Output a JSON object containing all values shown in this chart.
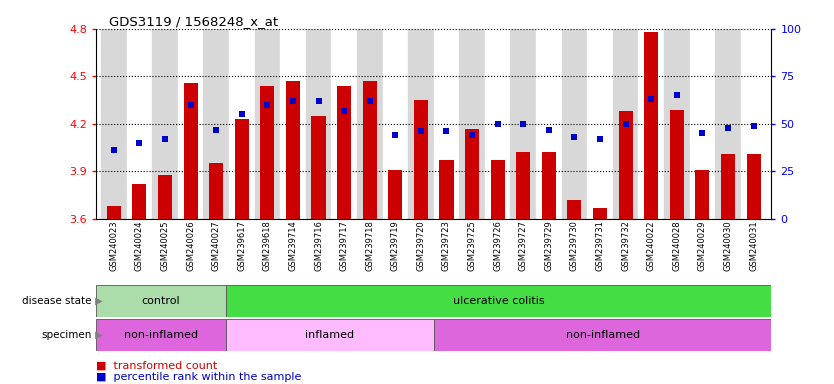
{
  "title": "GDS3119 / 1568248_x_at",
  "samples": [
    "GSM240023",
    "GSM240024",
    "GSM240025",
    "GSM240026",
    "GSM240027",
    "GSM239617",
    "GSM239618",
    "GSM239714",
    "GSM239716",
    "GSM239717",
    "GSM239718",
    "GSM239719",
    "GSM239720",
    "GSM239723",
    "GSM239725",
    "GSM239726",
    "GSM239727",
    "GSM239729",
    "GSM239730",
    "GSM239731",
    "GSM239732",
    "GSM240022",
    "GSM240028",
    "GSM240029",
    "GSM240030",
    "GSM240031"
  ],
  "bar_values": [
    3.68,
    3.82,
    3.88,
    4.46,
    3.95,
    4.23,
    4.44,
    4.47,
    4.25,
    4.44,
    4.47,
    3.91,
    4.35,
    3.97,
    4.17,
    3.97,
    4.02,
    4.02,
    3.72,
    3.67,
    4.28,
    4.78,
    4.29,
    3.91,
    4.01,
    4.01
  ],
  "dot_values": [
    36,
    40,
    42,
    60,
    47,
    55,
    60,
    62,
    62,
    57,
    62,
    44,
    46,
    46,
    44,
    50,
    50,
    47,
    43,
    42,
    50,
    63,
    65,
    45,
    48,
    49
  ],
  "ylim_left": [
    3.6,
    4.8
  ],
  "ylim_right": [
    0,
    100
  ],
  "yticks_left": [
    3.6,
    3.9,
    4.2,
    4.5,
    4.8
  ],
  "yticks_right": [
    0,
    25,
    50,
    75,
    100
  ],
  "bar_color": "#cc0000",
  "dot_color": "#0000cc",
  "plot_bg": "#ffffff",
  "column_bg_even": "#d8d8d8",
  "column_bg_odd": "#ffffff",
  "disease_state_groups": [
    {
      "label": "control",
      "start": 0,
      "end": 5,
      "color": "#aaddaa"
    },
    {
      "label": "ulcerative colitis",
      "start": 5,
      "end": 26,
      "color": "#44dd44"
    }
  ],
  "specimen_groups": [
    {
      "label": "non-inflamed",
      "start": 0,
      "end": 5,
      "color": "#dd66dd"
    },
    {
      "label": "inflamed",
      "start": 5,
      "end": 13,
      "color": "#ffbbff"
    },
    {
      "label": "non-inflamed",
      "start": 13,
      "end": 26,
      "color": "#dd66dd"
    }
  ],
  "legend_bar_label": "transformed count",
  "legend_dot_label": "percentile rank within the sample",
  "ds_label": "disease state",
  "sp_label": "specimen"
}
